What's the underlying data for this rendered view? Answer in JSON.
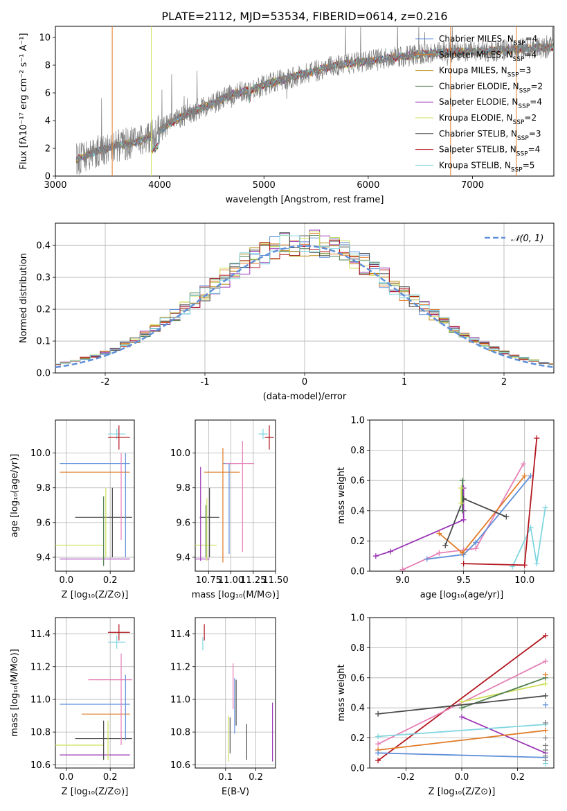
{
  "figure_title": "PLATE=2112, MJD=53534, FIBERID=0614, z=0.216",
  "colors": {
    "Chabrier MILES": "#5f8fd8",
    "Salpeter MILES": "#e07b26",
    "Kroupa MILES": "#b8860b",
    "Chabrier ELODIE": "#4f7f4f",
    "Salpeter ELODIE": "#9a35b5",
    "Kroupa ELODIE": "#cfe05a",
    "Chabrier STELIB": "#4a4a4a",
    "Salpeter STELIB": "#b3141d",
    "Kroupa STELIB": "#7fd6e0",
    "pink": "#e57fb6",
    "data": "#808080"
  },
  "chart_data": [
    {
      "id": "spectrum",
      "type": "line",
      "title": "PLATE=2112, MJD=53534, FIBERID=0614, z=0.216",
      "xlabel": "wavelength [Angstrom, rest frame]",
      "ylabel": "Flux [fλ10⁻¹⁷ erg cm⁻² s⁻¹ A⁻¹]",
      "xlim": [
        3000,
        7780
      ],
      "ylim": [
        0,
        10.8
      ],
      "xticks": [
        3000,
        4000,
        5000,
        6000,
        7000
      ],
      "yticks": [
        0,
        2,
        4,
        6,
        8,
        10
      ],
      "grid": false,
      "legend_position": "lower-right",
      "series": [
        {
          "name": "Chabrier MILES, N$_{SSP}$=4",
          "label": "Chabrier MILES, N",
          "sub": "SSP",
          "n": "=4"
        },
        {
          "name": "Salpeter MILES, N$_{SSP}$=4",
          "label": "Salpeter MILES, N",
          "sub": "SSP",
          "n": "=4"
        },
        {
          "name": "Kroupa MILES, N$_{SSP}$=3",
          "label": "Kroupa MILES, N",
          "sub": "SSP",
          "n": "=3"
        },
        {
          "name": "Chabrier ELODIE, N$_{SSP}$=2",
          "label": "Chabrier ELODIE, N",
          "sub": "SSP",
          "n": "=2"
        },
        {
          "name": "Salpeter ELODIE, N$_{SSP}$=4",
          "label": "Salpeter ELODIE, N",
          "sub": "SSP",
          "n": "=4"
        },
        {
          "name": "Kroupa ELODIE, N$_{SSP}$=2",
          "label": "Kroupa ELODIE, N",
          "sub": "SSP",
          "n": "=2"
        },
        {
          "name": "Chabrier STELIB, N$_{SSP}$=3",
          "label": "Chabrier STELIB, N",
          "sub": "SSP",
          "n": "=3"
        },
        {
          "name": "Salpeter STELIB, N$_{SSP}$=4",
          "label": "Salpeter STELIB, N",
          "sub": "SSP",
          "n": "=4"
        },
        {
          "name": "Kroupa STELIB, N$_{SSP}$=5",
          "label": "Kroupa STELIB, N",
          "sub": "SSP",
          "n": "=5"
        }
      ],
      "continuum": [
        [
          3200,
          1.2
        ],
        [
          3400,
          1.8
        ],
        [
          3600,
          2.2
        ],
        [
          3800,
          2.5
        ],
        [
          3950,
          3.0
        ],
        [
          4100,
          3.8
        ],
        [
          4300,
          4.6
        ],
        [
          4500,
          5.2
        ],
        [
          4700,
          5.9
        ],
        [
          4900,
          6.3
        ],
        [
          5100,
          6.8
        ],
        [
          5300,
          7.2
        ],
        [
          5500,
          7.6
        ],
        [
          5700,
          8.0
        ],
        [
          5900,
          8.2
        ],
        [
          6100,
          8.4
        ],
        [
          6300,
          8.6
        ],
        [
          6500,
          8.8
        ],
        [
          6700,
          8.9
        ],
        [
          6900,
          9.0
        ],
        [
          7100,
          9.0
        ],
        [
          7300,
          9.1
        ],
        [
          7500,
          9.2
        ],
        [
          7780,
          9.3
        ]
      ]
    },
    {
      "id": "residuals",
      "type": "histogram",
      "xlabel": "(data-model)/error",
      "ylabel": "Normed distribution",
      "xlim": [
        -2.5,
        2.5
      ],
      "ylim": [
        0,
        0.47
      ],
      "xticks": [
        -2,
        -1,
        0,
        1,
        2
      ],
      "yticks": [
        0.0,
        0.1,
        0.2,
        0.3,
        0.4
      ],
      "grid": true,
      "legend_position": "upper-right",
      "reference_curve": {
        "name": "N(0,1)",
        "label": "𝒩(0, 1)",
        "mean": 0,
        "sigma": 1
      }
    },
    {
      "id": "age-vs-Z",
      "type": "errorbar",
      "xlabel": "Z [log₁₀(Z/Z⊙)]",
      "ylabel": "age  [log₁₀(age/yr)]",
      "xlim": [
        -0.05,
        0.31
      ],
      "ylim": [
        9.32,
        10.19
      ],
      "xticks": [
        0.0,
        0.2
      ],
      "yticks": [
        9.4,
        9.6,
        9.8,
        10.0
      ],
      "grid": true,
      "points": [
        {
          "c": "Kroupa STELIB",
          "x": 0.23,
          "y": 10.11,
          "xerr": 0.04,
          "yerr": 0.03
        },
        {
          "c": "Salpeter STELIB",
          "x": 0.24,
          "y": 10.09,
          "xerr": 0.05,
          "yerr": 0.07
        },
        {
          "c": "Chabrier MILES",
          "x": 0.13,
          "y": 9.94,
          "xerr": 0.16,
          "yerr": 0.0
        },
        {
          "c": "pink",
          "x": 0.18,
          "y": 9.94,
          "xerr": 0.0,
          "yerr": 0.0
        },
        {
          "c": "Salpeter MILES",
          "x": 0.13,
          "y": 9.89,
          "xerr": 0.16,
          "yerr": 0.0
        },
        {
          "c": "Chabrier STELIB",
          "x": 0.17,
          "y": 9.63,
          "xerr": 0.13,
          "yerr": 0.0
        },
        {
          "c": "Kroupa ELODIE",
          "x": 0.06,
          "y": 9.47,
          "xerr": 0.11,
          "yerr": 0.0
        },
        {
          "c": "Salpeter ELODIE",
          "x": 0.13,
          "y": 9.39,
          "xerr": 0.16,
          "yerr": 0.0
        },
        {
          "c": "pink",
          "x": 0.25,
          "y": 9.75,
          "xerr": 0.0,
          "yerr": 0.25
        },
        {
          "c": "Chabrier MILES",
          "x": 0.27,
          "y": 9.7,
          "xerr": 0.0,
          "yerr": 0.3
        },
        {
          "c": "Chabrier STELIB",
          "x": 0.21,
          "y": 9.6,
          "xerr": 0.0,
          "yerr": 0.2
        },
        {
          "c": "Kroupa ELODIE",
          "x": 0.18,
          "y": 9.6,
          "xerr": 0.0,
          "yerr": 0.2
        },
        {
          "c": "Chabrier ELODIE",
          "x": 0.17,
          "y": 9.55,
          "xerr": 0.0,
          "yerr": 0.2
        }
      ]
    },
    {
      "id": "age-vs-mass",
      "type": "errorbar",
      "xlabel": "mass [log₁₀(M/M⊙)]",
      "ylabel": "",
      "xlim": [
        10.6,
        11.5
      ],
      "ylim": [
        9.32,
        10.19
      ],
      "xticks": [
        10.75,
        11.0,
        11.25,
        11.5
      ],
      "xticklabels": [
        "10.75",
        "11.00",
        "11.25",
        "11.50"
      ],
      "yticks": [
        9.4,
        9.6,
        9.8,
        10.0
      ],
      "grid": true,
      "points": [
        {
          "c": "Kroupa STELIB",
          "x": 11.36,
          "y": 10.11,
          "xerr": 0.05,
          "yerr": 0.03
        },
        {
          "c": "Salpeter STELIB",
          "x": 11.43,
          "y": 10.09,
          "xerr": 0.05,
          "yerr": 0.07
        },
        {
          "c": "Chabrier MILES",
          "x": 11.0,
          "y": 9.94,
          "xerr": 0.09,
          "yerr": 0.0
        },
        {
          "c": "pink",
          "x": 11.1,
          "y": 9.94,
          "xerr": 0.16,
          "yerr": 0.0
        },
        {
          "c": "Salpeter MILES",
          "x": 10.9,
          "y": 9.89,
          "xerr": 0.2,
          "yerr": 0.0
        },
        {
          "c": "Chabrier STELIB",
          "x": 10.76,
          "y": 9.63,
          "xerr": 0.11,
          "yerr": 0.0
        },
        {
          "c": "Kroupa ELODIE",
          "x": 10.72,
          "y": 9.47,
          "xerr": 0.12,
          "yerr": 0.0
        },
        {
          "c": "Salpeter ELODIE",
          "x": 10.66,
          "y": 9.39,
          "xerr": 0.1,
          "yerr": 0.0
        },
        {
          "c": "pink",
          "x": 11.13,
          "y": 9.75,
          "xerr": 0.0,
          "yerr": 0.32
        },
        {
          "c": "Chabrier MILES",
          "x": 10.98,
          "y": 9.68,
          "xerr": 0.0,
          "yerr": 0.26
        },
        {
          "c": "Salpeter MILES",
          "x": 10.91,
          "y": 9.7,
          "xerr": 0.0,
          "yerr": 0.33
        },
        {
          "c": "Salpeter ELODIE",
          "x": 10.66,
          "y": 9.65,
          "xerr": 0.0,
          "yerr": 0.27
        },
        {
          "c": "Chabrier STELIB",
          "x": 10.76,
          "y": 9.6,
          "xerr": 0.0,
          "yerr": 0.2
        },
        {
          "c": "Kroupa ELODIE",
          "x": 10.73,
          "y": 9.56,
          "xerr": 0.0,
          "yerr": 0.18
        },
        {
          "c": "Chabrier ELODIE",
          "x": 10.72,
          "y": 9.55,
          "xerr": 0.0,
          "yerr": 0.15
        }
      ]
    },
    {
      "id": "mass-weight-vs-age",
      "type": "line",
      "xlabel": "age  [log₁₀(age/yr)]",
      "ylabel": "mass weight",
      "xlim": [
        8.73,
        10.24
      ],
      "ylim": [
        0,
        1.0
      ],
      "xticks": [
        9.0,
        9.5,
        10.0
      ],
      "yticks": [
        0.0,
        0.2,
        0.4,
        0.6,
        0.8,
        1.0
      ],
      "grid": true,
      "series": [
        {
          "c": "Salpeter ELODIE",
          "points": [
            [
              8.78,
              0.1
            ],
            [
              8.9,
              0.13
            ],
            [
              9.5,
              0.34
            ],
            [
              9.5,
              0.4
            ],
            [
              9.5,
              0.55
            ]
          ]
        },
        {
          "c": "pink",
          "points": [
            [
              9.0,
              0.01
            ],
            [
              9.3,
              0.12
            ],
            [
              9.5,
              0.14
            ],
            [
              9.6,
              0.15
            ],
            [
              9.99,
              0.71
            ]
          ]
        },
        {
          "c": "Chabrier MILES",
          "points": [
            [
              9.2,
              0.08
            ],
            [
              9.5,
              0.11
            ],
            [
              9.6,
              0.19
            ],
            [
              10.05,
              0.63
            ]
          ]
        },
        {
          "c": "Salpeter MILES",
          "points": [
            [
              9.3,
              0.25
            ],
            [
              9.49,
              0.12
            ],
            [
              10.0,
              0.63
            ]
          ]
        },
        {
          "c": "Chabrier STELIB",
          "points": [
            [
              9.35,
              0.17
            ],
            [
              9.5,
              0.48
            ],
            [
              9.85,
              0.36
            ]
          ]
        },
        {
          "c": "Chabrier ELODIE",
          "points": [
            [
              9.49,
              0.4
            ],
            [
              9.49,
              0.6
            ]
          ]
        },
        {
          "c": "Kroupa ELODIE",
          "points": [
            [
              9.48,
              0.45
            ],
            [
              9.48,
              0.55
            ]
          ]
        },
        {
          "c": "Kroupa STELIB",
          "points": [
            [
              9.9,
              0.03
            ],
            [
              10.05,
              0.29
            ],
            [
              10.1,
              0.05
            ],
            [
              10.17,
              0.42
            ]
          ]
        },
        {
          "c": "Salpeter STELIB",
          "points": [
            [
              9.5,
              0.05
            ],
            [
              10.0,
              0.04
            ],
            [
              10.1,
              0.88
            ]
          ]
        }
      ]
    },
    {
      "id": "mass-vs-Z",
      "type": "errorbar",
      "xlabel": "Z [log₁₀(Z/Z⊙)]",
      "ylabel": "mass [log₁₀(M/M⊙)]",
      "xlim": [
        -0.05,
        0.31
      ],
      "ylim": [
        10.58,
        11.5
      ],
      "xticks": [
        0.0,
        0.2
      ],
      "yticks": [
        10.6,
        10.8,
        11.0,
        11.2,
        11.4
      ],
      "grid": true,
      "points": [
        {
          "c": "Salpeter STELIB",
          "x": 0.24,
          "y": 11.41,
          "xerr": 0.05,
          "yerr": 0.05
        },
        {
          "c": "Kroupa STELIB",
          "x": 0.23,
          "y": 11.35,
          "xerr": 0.04,
          "yerr": 0.04
        },
        {
          "c": "pink",
          "x": 0.2,
          "y": 11.12,
          "xerr": 0.1,
          "yerr": 0.0
        },
        {
          "c": "Chabrier MILES",
          "x": 0.13,
          "y": 10.97,
          "xerr": 0.16,
          "yerr": 0.0
        },
        {
          "c": "Salpeter MILES",
          "x": 0.18,
          "y": 10.91,
          "xerr": 0.11,
          "yerr": 0.0
        },
        {
          "c": "Chabrier STELIB",
          "x": 0.17,
          "y": 10.76,
          "xerr": 0.13,
          "yerr": 0.0
        },
        {
          "c": "Kroupa ELODIE",
          "x": 0.06,
          "y": 10.72,
          "xerr": 0.11,
          "yerr": 0.0
        },
        {
          "c": "Salpeter ELODIE",
          "x": 0.13,
          "y": 10.66,
          "xerr": 0.16,
          "yerr": 0.0
        },
        {
          "c": "pink",
          "x": 0.25,
          "y": 11.0,
          "xerr": 0.0,
          "yerr": 0.28
        },
        {
          "c": "Chabrier MILES",
          "x": 0.27,
          "y": 10.95,
          "xerr": 0.0,
          "yerr": 0.2
        },
        {
          "c": "Chabrier STELIB",
          "x": 0.17,
          "y": 10.75,
          "xerr": 0.0,
          "yerr": 0.12
        },
        {
          "c": "Kroupa ELODIE",
          "x": 0.19,
          "y": 10.75,
          "xerr": 0.0,
          "yerr": 0.12
        }
      ]
    },
    {
      "id": "mass-vs-EBV",
      "type": "errorbar",
      "xlabel": "E(B-V)",
      "ylabel": "",
      "xlim": [
        0.0,
        0.265
      ],
      "ylim": [
        10.58,
        11.5
      ],
      "xticks": [
        0.1,
        0.2
      ],
      "yticks": [
        10.6,
        10.8,
        11.0,
        11.2,
        11.4
      ],
      "grid": true,
      "points": [
        {
          "c": "Salpeter STELIB",
          "x": 0.03,
          "y": 11.41,
          "xerr": 0.0,
          "yerr": 0.05
        },
        {
          "c": "Kroupa STELIB",
          "x": 0.025,
          "y": 11.34,
          "xerr": 0.0,
          "yerr": 0.04
        },
        {
          "c": "pink",
          "x": 0.125,
          "y": 11.08,
          "xerr": 0.0,
          "yerr": 0.14
        },
        {
          "c": "Chabrier STELIB",
          "x": 0.135,
          "y": 10.98,
          "xerr": 0.0,
          "yerr": 0.14
        },
        {
          "c": "Chabrier MILES",
          "x": 0.13,
          "y": 10.96,
          "xerr": 0.0,
          "yerr": 0.17
        },
        {
          "c": "Kroupa ELODIE",
          "x": 0.11,
          "y": 10.76,
          "xerr": 0.0,
          "yerr": 0.14
        },
        {
          "c": "Chabrier STELIB",
          "x": 0.115,
          "y": 10.78,
          "xerr": 0.0,
          "yerr": 0.11
        },
        {
          "c": "Chabrier STELIB",
          "x": 0.17,
          "y": 10.74,
          "xerr": 0.0,
          "yerr": 0.11
        },
        {
          "c": "Salpeter ELODIE",
          "x": 0.255,
          "y": 10.8,
          "xerr": 0.0,
          "yerr": 0.18
        }
      ]
    },
    {
      "id": "mass-weight-vs-Z",
      "type": "line",
      "xlabel": "Z [log₁₀(Z/Z⊙)]",
      "ylabel": "mass weight",
      "xlim": [
        -0.33,
        0.33
      ],
      "ylim": [
        0,
        1.0
      ],
      "xticks": [
        -0.2,
        0.0,
        0.2
      ],
      "yticks": [
        0.0,
        0.2,
        0.4,
        0.6,
        0.8,
        1.0
      ],
      "grid": true,
      "series": [
        {
          "c": "Salpeter STELIB",
          "points": [
            [
              -0.3,
              0.05
            ],
            [
              0.3,
              0.88
            ]
          ]
        },
        {
          "c": "pink",
          "points": [
            [
              -0.3,
              0.16
            ],
            [
              0.3,
              0.71
            ]
          ]
        },
        {
          "c": "Kroupa ELODIE",
          "points": [
            [
              0.0,
              0.44
            ],
            [
              0.3,
              0.56
            ]
          ]
        },
        {
          "c": "Chabrier ELODIE",
          "points": [
            [
              0.0,
              0.4
            ],
            [
              0.3,
              0.6
            ]
          ]
        },
        {
          "c": "Chabrier STELIB",
          "points": [
            [
              -0.3,
              0.36
            ],
            [
              0.3,
              0.48
            ]
          ]
        },
        {
          "c": "Salpeter ELODIE",
          "points": [
            [
              0.0,
              0.34
            ],
            [
              0.3,
              0.1
            ]
          ]
        },
        {
          "c": "Kroupa STELIB",
          "points": [
            [
              -0.3,
              0.21
            ],
            [
              0.3,
              0.29
            ]
          ]
        },
        {
          "c": "Salpeter MILES",
          "points": [
            [
              -0.3,
              0.12
            ],
            [
              0.3,
              0.25
            ]
          ]
        },
        {
          "c": "Chabrier MILES",
          "points": [
            [
              -0.3,
              0.1
            ],
            [
              0.3,
              0.07
            ]
          ]
        }
      ],
      "stack_points": [
        0.62,
        0.42,
        0.3,
        0.2,
        0.15,
        0.12,
        0.08,
        0.05,
        0.03
      ]
    }
  ]
}
